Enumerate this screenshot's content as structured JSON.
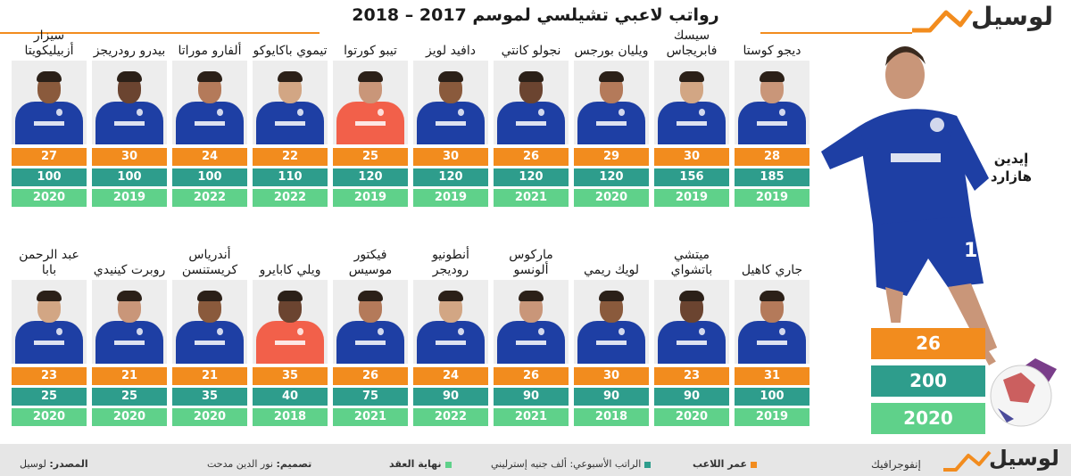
{
  "header": {
    "title": "رواتب لاعبي تشيلسي لموسم 2017 – 2018",
    "logo": "لوسيل"
  },
  "colors": {
    "age": "#f28c1e",
    "salary": "#2e9d8c",
    "contract": "#5fd18a",
    "accent": "#f28c1e",
    "kit": "#1e3fa4"
  },
  "featured": {
    "name": "إيدين هازارد",
    "age": "26",
    "salary": "200",
    "contract_end": "2020"
  },
  "row1": [
    {
      "name": "ديجو كوستا",
      "age": "28",
      "salary": "185",
      "end": "2019"
    },
    {
      "name": "سيسك فابريجاس",
      "age": "30",
      "salary": "156",
      "end": "2019"
    },
    {
      "name": "ويليان بورجس",
      "age": "29",
      "salary": "120",
      "end": "2020"
    },
    {
      "name": "نجولو كانتي",
      "age": "26",
      "salary": "120",
      "end": "2021"
    },
    {
      "name": "دافيد لويز",
      "age": "30",
      "salary": "120",
      "end": "2019"
    },
    {
      "name": "تيبو كورتوا",
      "age": "25",
      "salary": "120",
      "end": "2019"
    },
    {
      "name": "تيموي باكايوكو",
      "age": "22",
      "salary": "110",
      "end": "2022"
    },
    {
      "name": "ألفارو موراتا",
      "age": "24",
      "salary": "100",
      "end": "2022"
    },
    {
      "name": "بيدرو رودريجز",
      "age": "30",
      "salary": "100",
      "end": "2019"
    },
    {
      "name": "سيزار أزبيليكويتا",
      "age": "27",
      "salary": "100",
      "end": "2020"
    }
  ],
  "row2": [
    {
      "name": "جاري كاهيل",
      "age": "31",
      "salary": "100",
      "end": "2019"
    },
    {
      "name": "ميتشي باتشواي",
      "age": "23",
      "salary": "90",
      "end": "2020"
    },
    {
      "name": "لويك ريمي",
      "age": "30",
      "salary": "90",
      "end": "2018"
    },
    {
      "name": "ماركوس ألونسو",
      "age": "26",
      "salary": "90",
      "end": "2021"
    },
    {
      "name": "أنطونيو روديجر",
      "age": "24",
      "salary": "90",
      "end": "2022"
    },
    {
      "name": "فيكتور موسيس",
      "age": "26",
      "salary": "75",
      "end": "2021"
    },
    {
      "name": "ويلي كابايرو",
      "age": "35",
      "salary": "40",
      "end": "2018"
    },
    {
      "name": "أندرياس كريستنسن",
      "age": "21",
      "salary": "35",
      "end": "2020"
    },
    {
      "name": "روبرت كينيدي",
      "age": "21",
      "salary": "25",
      "end": "2020"
    },
    {
      "name": "عبد الرحمن بابا",
      "age": "23",
      "salary": "25",
      "end": "2020"
    }
  ],
  "footer": {
    "brand": "إنفوجرافيك",
    "logo": "لوسيل",
    "legend_age": "عمر اللاعب",
    "legend_salary": "الراتب الأسبوعي: ألف جنيه إسترليني",
    "legend_contract": "نهاية العقد",
    "design_label": "تصميم:",
    "design_value": "نور الدين مدحت",
    "source_label": "المصدر:",
    "source_value": "لوسيل"
  }
}
